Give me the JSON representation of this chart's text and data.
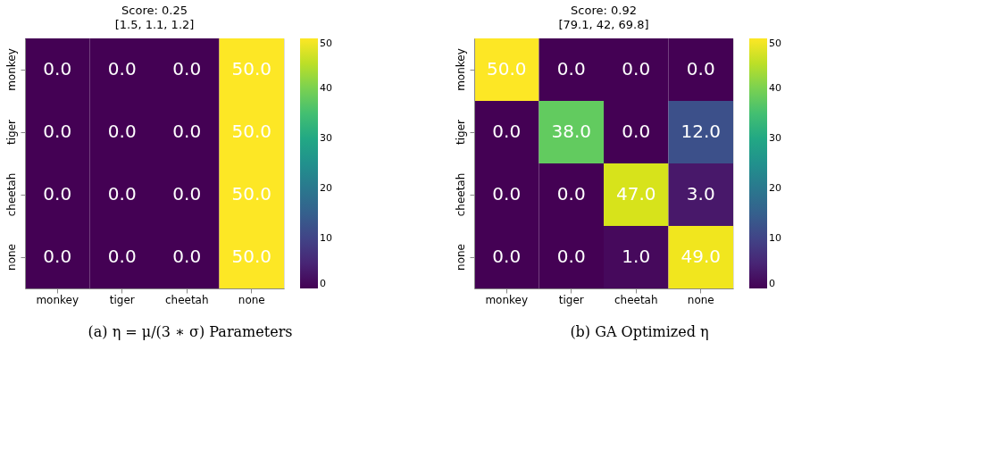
{
  "chart_data": [
    {
      "type": "heatmap",
      "title": "Score: 0.25",
      "subtitle": "[1.5, 1.1, 1.2]",
      "categories": [
        "monkey",
        "tiger",
        "cheetah",
        "none"
      ],
      "y_categories": [
        "monkey",
        "tiger",
        "cheetah",
        "none"
      ],
      "cells": [
        [
          0,
          0,
          0,
          50
        ],
        [
          0,
          0,
          0,
          50
        ],
        [
          0,
          0,
          0,
          50
        ],
        [
          0,
          0,
          0,
          50
        ]
      ],
      "cell_labels": [
        [
          "0.0",
          "0.0",
          "0.0",
          "50.0"
        ],
        [
          "0.0",
          "0.0",
          "0.0",
          "50.0"
        ],
        [
          "0.0",
          "0.0",
          "0.0",
          "50.0"
        ],
        [
          "0.0",
          "0.0",
          "0.0",
          "50.0"
        ]
      ],
      "clim": [
        0,
        50
      ],
      "cticks": [
        0,
        10,
        20,
        30,
        40,
        50
      ],
      "annotations": [
        "(a) η = μ/(3 ∗ σ) Parameters"
      ]
    },
    {
      "type": "heatmap",
      "title": "Score: 0.92",
      "subtitle": "[79.1, 42, 69.8]",
      "categories": [
        "monkey",
        "tiger",
        "cheetah",
        "none"
      ],
      "y_categories": [
        "monkey",
        "tiger",
        "cheetah",
        "none"
      ],
      "cells": [
        [
          50,
          0,
          0,
          0
        ],
        [
          0,
          38,
          0,
          12
        ],
        [
          0,
          0,
          47,
          3
        ],
        [
          0,
          0,
          1,
          49
        ]
      ],
      "cell_labels": [
        [
          "50.0",
          "0.0",
          "0.0",
          "0.0"
        ],
        [
          "0.0",
          "38.0",
          "0.0",
          "12.0"
        ],
        [
          "0.0",
          "0.0",
          "47.0",
          "3.0"
        ],
        [
          "0.0",
          "0.0",
          "1.0",
          "49.0"
        ]
      ],
      "clim": [
        0,
        50
      ],
      "cticks": [
        0,
        10,
        20,
        30,
        40,
        50
      ],
      "annotations": [
        "(b) GA Optimized η"
      ]
    }
  ]
}
